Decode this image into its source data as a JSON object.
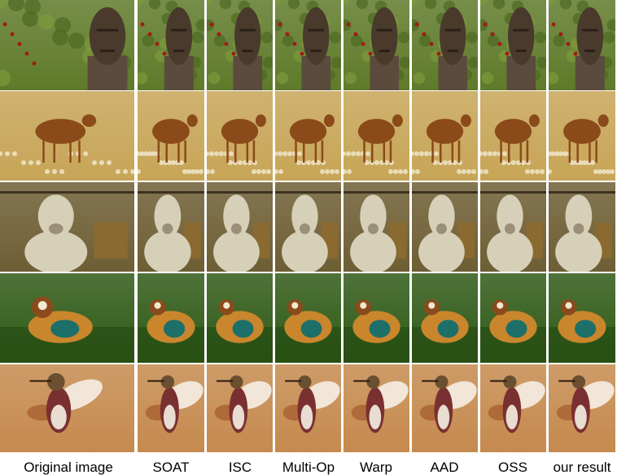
{
  "figure": {
    "columns": [
      {
        "label": "Original image"
      },
      {
        "label": "SOAT"
      },
      {
        "label": "ISC"
      },
      {
        "label": "Multi-Op"
      },
      {
        "label": "Warp"
      },
      {
        "label": "AAD"
      },
      {
        "label": "OSS"
      },
      {
        "label": "our result"
      }
    ],
    "rows": [
      {
        "subject": "wooden carved head statue",
        "bg": "#5f7a2a",
        "fg": "#4a3a2c",
        "accent": "#a01c18"
      },
      {
        "subject": "deer in dry grass",
        "bg": "#c7a557",
        "fg": "#8b4a1a",
        "accent": "#efe6c8"
      },
      {
        "subject": "sheep behind fence",
        "bg": "#6e5e34",
        "fg": "#d7d0b8",
        "accent": "#8a6a30"
      },
      {
        "subject": "mandarin duck on water",
        "bg": "#2f5a16",
        "fg": "#c9862c",
        "accent": "#1d6f6a"
      },
      {
        "subject": "hummingbird in flight",
        "bg": "#c58a4e",
        "fg": "#7a3030",
        "accent": "#f1e6d8"
      }
    ]
  }
}
